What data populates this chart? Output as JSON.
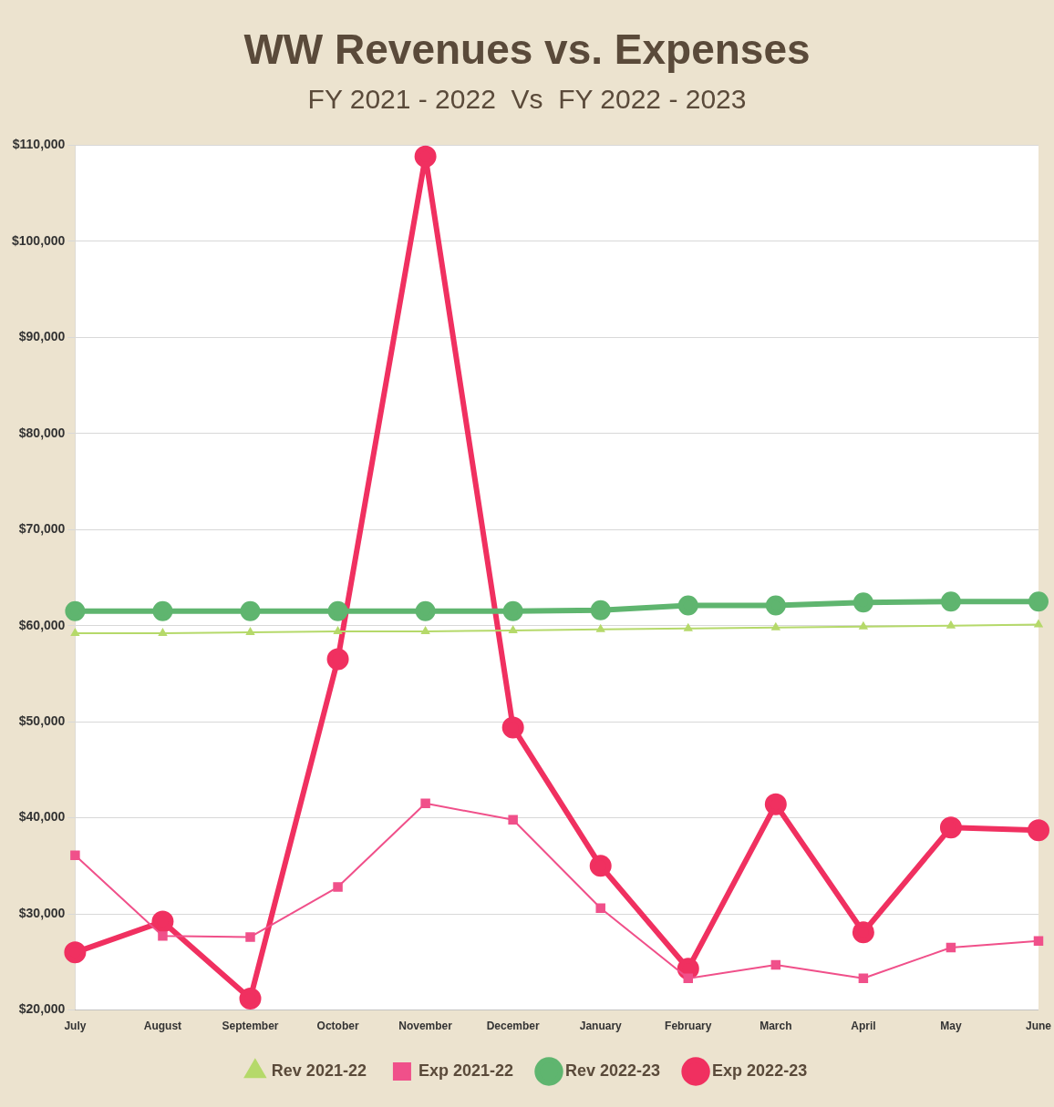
{
  "chart_data": {
    "type": "line",
    "title": "WW Revenues vs. Expenses",
    "subtitle": "FY 2021 - 2022  Vs  FY 2022 - 2023",
    "categories": [
      "July",
      "August",
      "September",
      "October",
      "November",
      "December",
      "January",
      "February",
      "March",
      "April",
      "May",
      "June"
    ],
    "series": [
      {
        "name": "Rev 2021-22",
        "color": "#b5d96a",
        "marker": "triangle",
        "values": [
          59200,
          59200,
          59300,
          59400,
          59400,
          59500,
          59600,
          59700,
          59800,
          59900,
          60000,
          60100
        ]
      },
      {
        "name": "Exp 2021-22",
        "color": "#f0508a",
        "marker": "square",
        "values": [
          36100,
          27700,
          27600,
          32800,
          41500,
          39800,
          30600,
          23300,
          24700,
          23300,
          26500,
          27200
        ]
      },
      {
        "name": "Rev 2022-23",
        "color": "#5fb56f",
        "marker": "circle",
        "values": [
          61500,
          61500,
          61500,
          61500,
          61500,
          61500,
          61600,
          62100,
          62100,
          62400,
          62500,
          62500
        ]
      },
      {
        "name": "Exp 2022-23",
        "color": "#f03060",
        "marker": "circle",
        "values": [
          26000,
          29200,
          21200,
          56500,
          108800,
          49400,
          35000,
          24300,
          41400,
          28100,
          39000,
          38700
        ]
      }
    ],
    "ylim": [
      20000,
      110000
    ],
    "yticks": [
      {
        "value": 20000,
        "label": "$20,000"
      },
      {
        "value": 30000,
        "label": "$30,000"
      },
      {
        "value": 40000,
        "label": "$40,000"
      },
      {
        "value": 50000,
        "label": "$50,000"
      },
      {
        "value": 60000,
        "label": "$60,000"
      },
      {
        "value": 70000,
        "label": "$70,000"
      },
      {
        "value": 80000,
        "label": "$80,000"
      },
      {
        "value": 90000,
        "label": "$90,000"
      },
      {
        "value": 100000,
        "label": "$100,000"
      },
      {
        "value": 110000,
        "label": "$110,000"
      }
    ],
    "grid": "y",
    "legend": "bottom"
  }
}
